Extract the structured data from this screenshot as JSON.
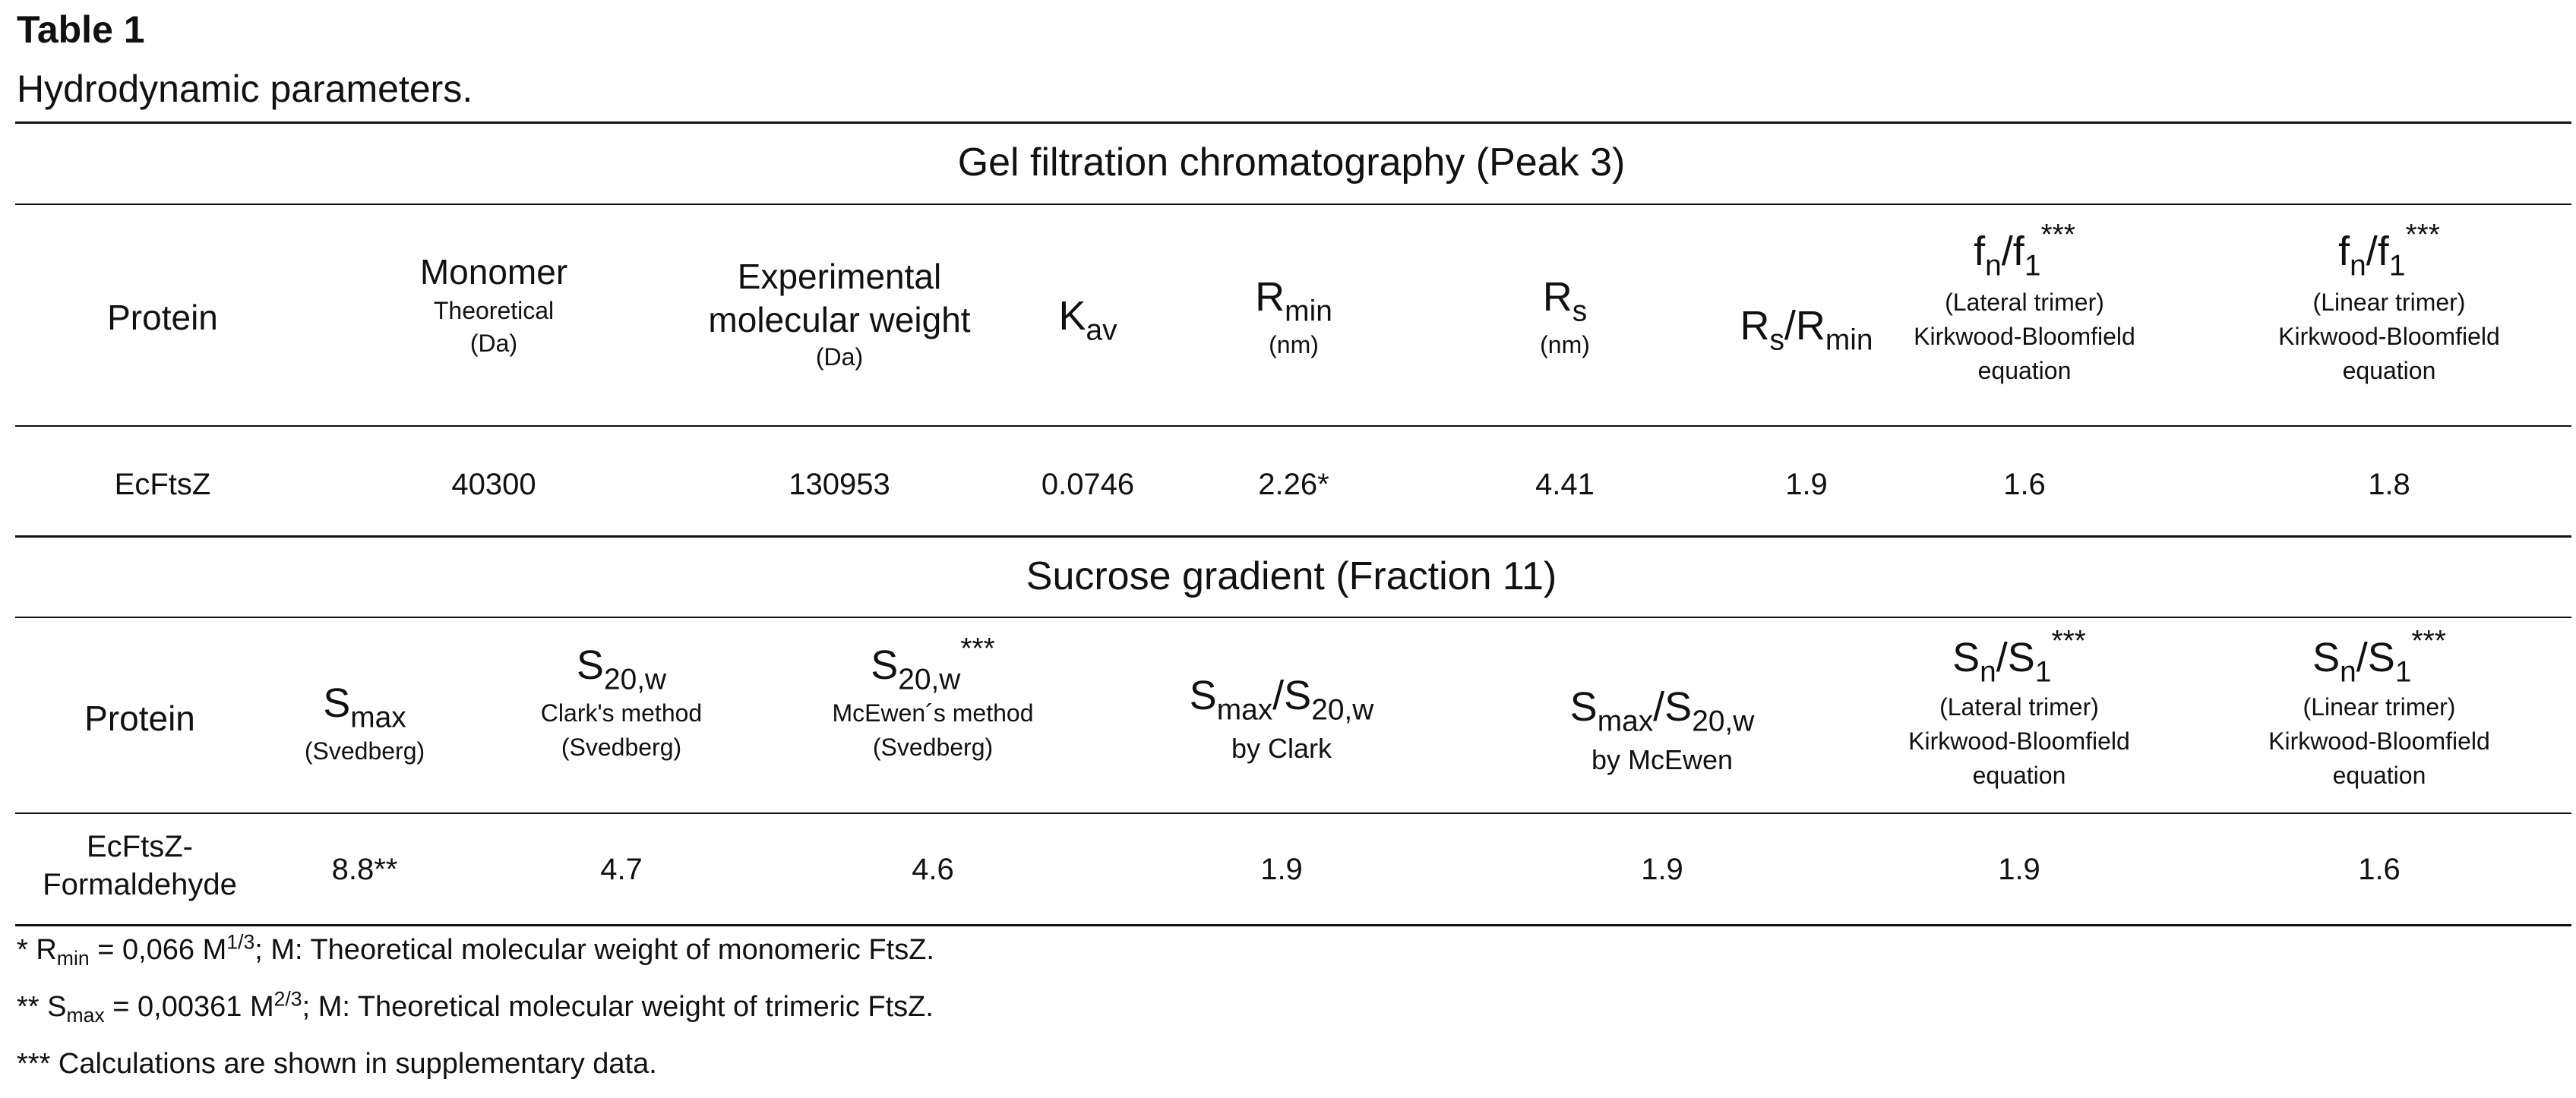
{
  "table": {
    "label": "Table 1",
    "caption": "Hydrodynamic parameters."
  },
  "gel": {
    "title": "Gel filtration chromatography (Peak 3)",
    "headers": {
      "protein": "Protein",
      "monomer_main": "Monomer",
      "monomer_sub1": "Theoretical",
      "monomer_unit": "(Da)",
      "exp_line1": "Experimental",
      "exp_line2": "molecular weight",
      "exp_unit": "(Da)",
      "kav_base": "K",
      "kav_sub": "av",
      "rmin_base": "R",
      "rmin_sub": "min",
      "rmin_unit": "(nm)",
      "rs_base": "R",
      "rs_sub": "s",
      "rs_unit": "(nm)",
      "ratio_num_base": "R",
      "ratio_num_sub": "s",
      "ratio_slash": "/R",
      "ratio_den_sub": "min",
      "f_num": "f",
      "f_num_sub": "n",
      "f_slash": "/f",
      "f_den_sub": "1",
      "f_sup": "***",
      "lateral_label": "(Lateral trimer)",
      "linear_label": "(Linear trimer)",
      "kb_line1": "Kirkwood-Bloomfield",
      "kb_line2": "equation"
    },
    "row": {
      "protein": "EcFtsZ",
      "monomer": "40300",
      "experimental": "130953",
      "kav": "0.0746",
      "rmin": "2.26*",
      "rs": "4.41",
      "rs_rmin": "1.9",
      "fn_lateral": "1.6",
      "fn_linear": "1.8"
    }
  },
  "sucrose": {
    "title": "Sucrose gradient (Fraction 11)",
    "headers": {
      "protein": "Protein",
      "smax_base": "S",
      "smax_sub": "max",
      "svedberg": "(Svedberg)",
      "s20_base": "S",
      "s20_sub": "20,w",
      "clark_method": "Clark's method",
      "mcewen_sup": "***",
      "mcewen_method": "McEwen´s method",
      "ratio_slash": "/S",
      "by_clark": "by Clark",
      "by_mcewen": "by McEwen",
      "sn_base": "S",
      "sn_sub": "n",
      "sn_slash": "/S",
      "sn_den_sub": "1",
      "sn_sup": "***",
      "lateral_label": "(Lateral trimer)",
      "linear_label": "(Linear trimer)",
      "kb_line1": "Kirkwood-Bloomfield",
      "kb_line2": "equation"
    },
    "row": {
      "protein_line1": "EcFtsZ-",
      "protein_line2": "Formaldehyde",
      "smax": "8.8**",
      "s20_clark": "4.7",
      "s20_mcewen": "4.6",
      "ratio_clark": "1.9",
      "ratio_mcewen": "1.9",
      "sn_lateral": "1.9",
      "sn_linear": "1.6"
    }
  },
  "footnotes": {
    "f1_a": "* R",
    "f1_sub": "min",
    "f1_b": " = 0,066 M",
    "f1_sup": "1/3",
    "f1_c": "; M: Theoretical molecular weight of monomeric FtsZ.",
    "f2_a": "** S",
    "f2_sub": "max",
    "f2_b": " = 0,00361 M",
    "f2_sup": "2/3",
    "f2_c": "; M: Theoretical molecular weight of trimeric FtsZ.",
    "f3": "*** Calculations are shown in supplementary data."
  }
}
